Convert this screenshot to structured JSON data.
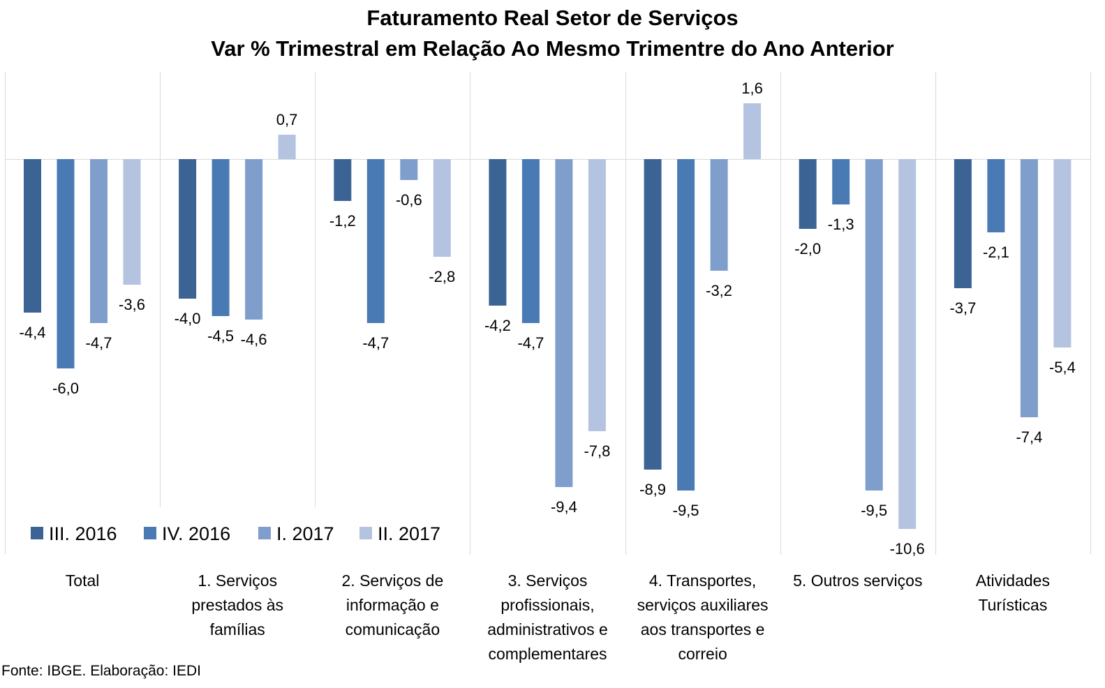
{
  "title": "Faturamento Real Setor de Serviços",
  "subtitle": "Var % Trimestral em Relação Ao Mesmo Trimentre do Ano Anterior",
  "source": "Fonte: IBGE. Elaboração: IEDI",
  "chart_data": {
    "type": "bar",
    "title": "Faturamento Real Setor de Serviços",
    "subtitle": "Var % Trimestral em Relação Ao Mesmo Trimentre do Ano Anterior",
    "categories": [
      [
        "Total"
      ],
      [
        "1. Serviços",
        "prestados às",
        "famílias"
      ],
      [
        "2. Serviços de",
        "informação e",
        "comunicação"
      ],
      [
        "3. Serviços",
        "profissionais,",
        "administrativos e",
        "complementares"
      ],
      [
        "4. Transportes,",
        "serviços auxiliares",
        "aos transportes e",
        "correio"
      ],
      [
        "5. Outros serviços"
      ],
      [
        "Atividades",
        "Turísticas"
      ]
    ],
    "series": [
      {
        "name": "III. 2016",
        "color": "#3b6393",
        "values": [
          -4.4,
          -4.0,
          -1.2,
          -4.2,
          -8.9,
          -2.0,
          -3.7
        ]
      },
      {
        "name": "IV. 2016",
        "color": "#4a7ab4",
        "values": [
          -6.0,
          -4.5,
          -4.7,
          -4.7,
          -9.5,
          -1.3,
          -2.1
        ]
      },
      {
        "name": "I. 2017",
        "color": "#7f9ecb",
        "values": [
          -4.7,
          -4.6,
          -0.6,
          -9.4,
          -3.2,
          -9.5,
          -7.4
        ]
      },
      {
        "name": "II. 2017",
        "color": "#b4c3df",
        "values": [
          -3.6,
          0.7,
          -2.8,
          -7.8,
          1.6,
          -10.6,
          -5.4
        ]
      }
    ],
    "ylim": [
      -11.33,
      2.47
    ],
    "decimal_separator": ",",
    "legend_position": "bottom-left inside plot",
    "grid": false
  }
}
